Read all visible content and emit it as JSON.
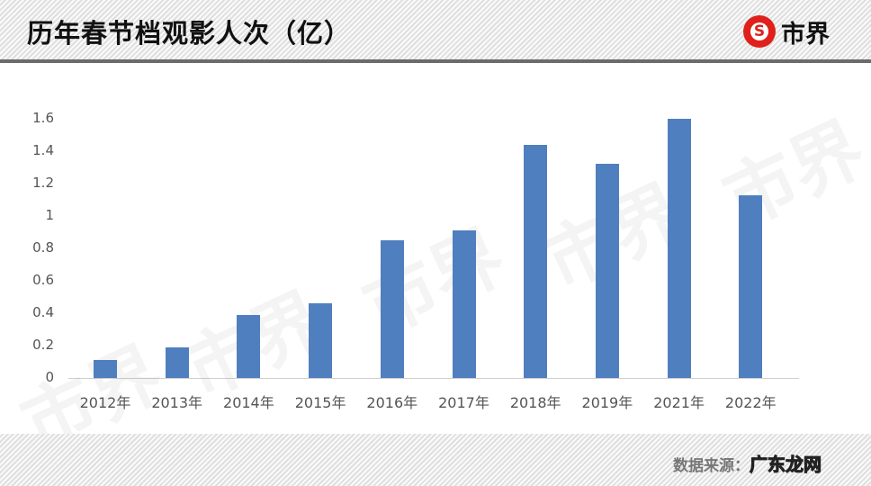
{
  "header": {
    "title": "历年春节档观影人次（亿）",
    "logo_symbol": "S",
    "logo_text": "市界"
  },
  "watermark": "市界",
  "footer": {
    "source_label": "数据来源：",
    "source_overlay": "广东龙网"
  },
  "y_ticks": [
    "1.6",
    "1.4",
    "1.2",
    "1",
    "0.8",
    "0.6",
    "0.4",
    "0.2",
    "0"
  ],
  "colors": {
    "bar": "#4f7fbe",
    "logo_red": "#e0201b"
  },
  "chart_data": {
    "type": "bar",
    "title": "历年春节档观影人次（亿）",
    "xlabel": "",
    "ylabel": "",
    "categories": [
      "2012年",
      "2013年",
      "2014年",
      "2015年",
      "2016年",
      "2017年",
      "2018年",
      "2019年",
      "2021年",
      "2022年"
    ],
    "values": [
      0.11,
      0.19,
      0.39,
      0.46,
      0.85,
      0.91,
      1.44,
      1.32,
      1.6,
      1.13
    ],
    "ylim": [
      0,
      1.6
    ],
    "yticks": [
      0,
      0.2,
      0.4,
      0.6,
      0.8,
      1,
      1.2,
      1.4,
      1.6
    ],
    "grid": false,
    "legend": "none"
  }
}
